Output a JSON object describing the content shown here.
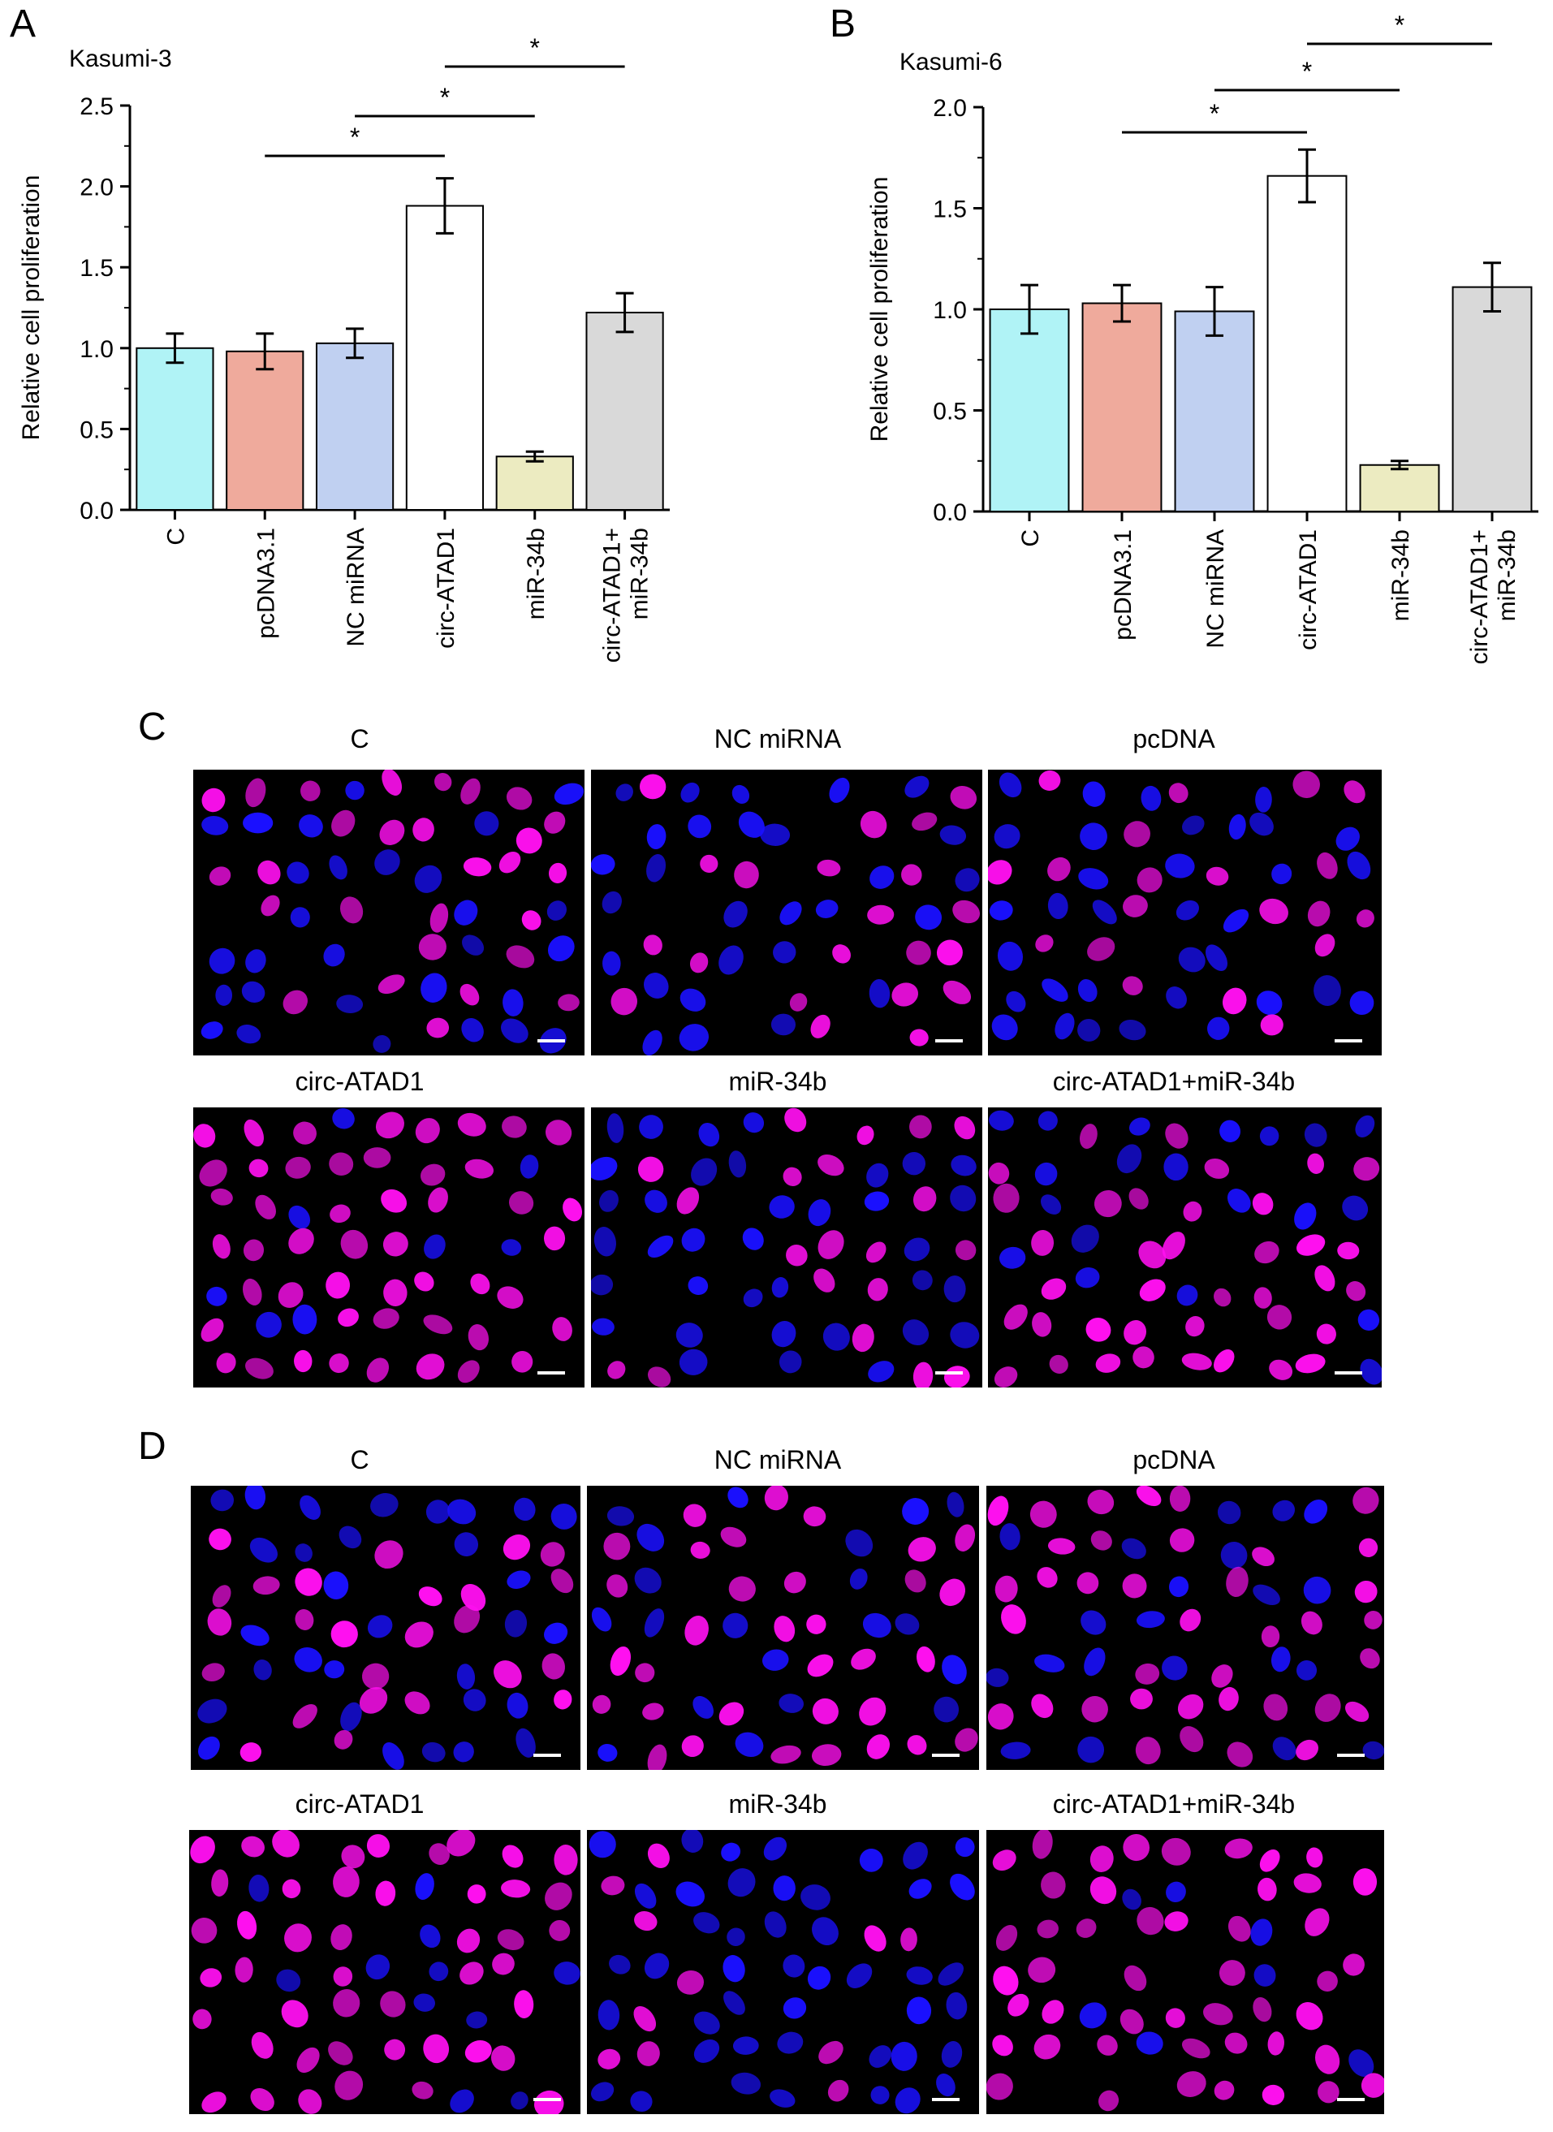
{
  "panel_labels": {
    "A": "A",
    "B": "B",
    "C": "C",
    "D": "D"
  },
  "chart_data": [
    {
      "type": "bar",
      "title": "Kasumi-3",
      "xlabel": "",
      "ylabel": "Relative cell proliferation",
      "ylim": [
        0,
        2.5
      ],
      "yticks": [
        "0.0",
        "0.5",
        "1.0",
        "1.5",
        "2.0",
        "2.5"
      ],
      "categories": [
        "C",
        "pcDNA3.1",
        "NC miRNA",
        "circ-ATAD1",
        "miR-34b",
        "circ-ATAD1+ miR-34b"
      ],
      "category_lines": [
        [
          "C"
        ],
        [
          "pcDNA3.1"
        ],
        [
          "NC miRNA"
        ],
        [
          "circ-ATAD1"
        ],
        [
          "miR-34b"
        ],
        [
          "circ-ATAD1+",
          "miR-34b"
        ]
      ],
      "values": [
        1.0,
        0.98,
        1.03,
        1.88,
        0.33,
        1.22
      ],
      "errors": [
        0.09,
        0.11,
        0.09,
        0.17,
        0.03,
        0.12
      ],
      "colors": [
        "#b0f3f6",
        "#efaa9c",
        "#c0d0f1",
        "#ffffff",
        "#ecebc1",
        "#d9d9d9"
      ],
      "significance": [
        {
          "from": 1,
          "to": 3,
          "label": "*"
        },
        {
          "from": 2,
          "to": 4,
          "label": "*"
        },
        {
          "from": 3,
          "to": 5,
          "label": "*"
        }
      ]
    },
    {
      "type": "bar",
      "title": "Kasumi-6",
      "xlabel": "",
      "ylabel": "Relative cell proliferation",
      "ylim": [
        0,
        2.0
      ],
      "yticks": [
        "0.0",
        "0.5",
        "1.0",
        "1.5",
        "2.0"
      ],
      "categories": [
        "C",
        "pcDNA3.1",
        "NC miRNA",
        "circ-ATAD1",
        "miR-34b",
        "circ-ATAD1+ miR-34b"
      ],
      "category_lines": [
        [
          "C"
        ],
        [
          "pcDNA3.1"
        ],
        [
          "NC miRNA"
        ],
        [
          "circ-ATAD1"
        ],
        [
          "miR-34b"
        ],
        [
          "circ-ATAD1+",
          "miR-34b"
        ]
      ],
      "values": [
        1.0,
        1.03,
        0.99,
        1.66,
        0.23,
        1.11
      ],
      "errors": [
        0.12,
        0.09,
        0.12,
        0.13,
        0.02,
        0.12
      ],
      "colors": [
        "#b0f3f6",
        "#efaa9c",
        "#c0d0f1",
        "#ffffff",
        "#ecebc1",
        "#d9d9d9"
      ],
      "significance": [
        {
          "from": 1,
          "to": 3,
          "label": "*"
        },
        {
          "from": 2,
          "to": 4,
          "label": "*"
        },
        {
          "from": 3,
          "to": 5,
          "label": "*"
        }
      ]
    }
  ],
  "micrographs": {
    "colors": {
      "background": "#000000",
      "nucleus_blue": "#1a10ff",
      "nucleus_magenta": "#ff10f0"
    },
    "panel_C": [
      {
        "title": "C",
        "magenta_fraction": 0.45
      },
      {
        "title": "NC miRNA",
        "magenta_fraction": 0.45
      },
      {
        "title": "pcDNA",
        "magenta_fraction": 0.42
      },
      {
        "title": "circ-ATAD1",
        "magenta_fraction": 0.85
      },
      {
        "title": "miR-34b",
        "magenta_fraction": 0.3
      },
      {
        "title": "circ-ATAD1+miR-34b",
        "magenta_fraction": 0.65
      }
    ],
    "panel_D": [
      {
        "title": "C",
        "magenta_fraction": 0.55
      },
      {
        "title": "NC miRNA",
        "magenta_fraction": 0.6
      },
      {
        "title": "pcDNA",
        "magenta_fraction": 0.55
      },
      {
        "title": "circ-ATAD1",
        "magenta_fraction": 0.85
      },
      {
        "title": "miR-34b",
        "magenta_fraction": 0.25
      },
      {
        "title": "circ-ATAD1+miR-34b",
        "magenta_fraction": 0.85
      }
    ]
  }
}
